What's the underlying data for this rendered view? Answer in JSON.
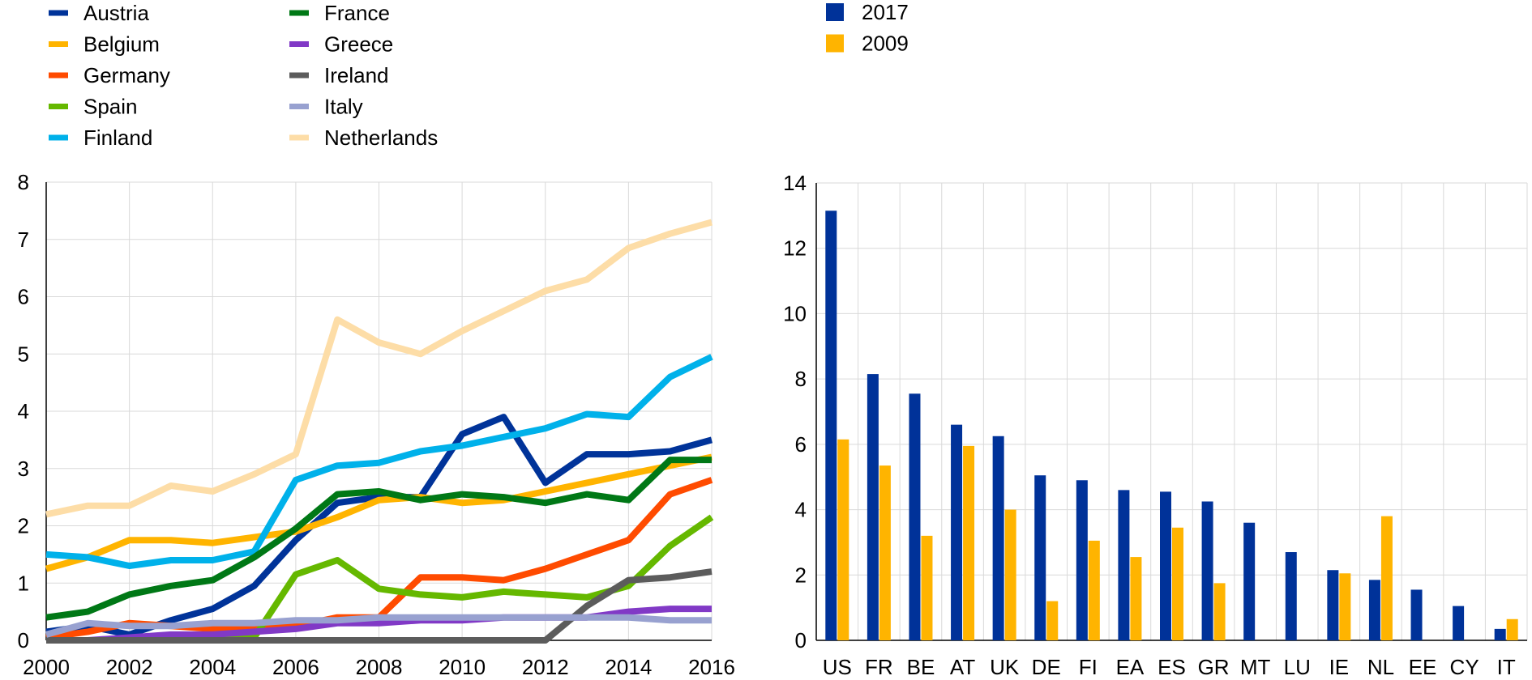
{
  "chart_data": [
    {
      "type": "line",
      "title": "",
      "xlabel": "",
      "ylabel": "",
      "x": [
        2000,
        2001,
        2002,
        2003,
        2004,
        2005,
        2006,
        2007,
        2008,
        2009,
        2010,
        2011,
        2012,
        2013,
        2014,
        2015,
        2016
      ],
      "xlim": [
        2000,
        2016
      ],
      "ylim": [
        0,
        8
      ],
      "x_ticks": [
        "2000",
        "2002",
        "2004",
        "2006",
        "2008",
        "2010",
        "2012",
        "2014",
        "2016"
      ],
      "y_ticks": [
        "0",
        "1",
        "2",
        "3",
        "4",
        "5",
        "6",
        "7",
        "8"
      ],
      "grid": "horizontal and vertical",
      "legend_position": "top-left",
      "series": [
        {
          "name": "Austria",
          "color": "#003399",
          "values": [
            0.15,
            0.25,
            0.1,
            0.35,
            0.55,
            0.95,
            1.75,
            2.4,
            2.5,
            2.5,
            3.6,
            3.9,
            2.75,
            3.25,
            3.25,
            3.3,
            3.5
          ]
        },
        {
          "name": "Belgium",
          "color": "#FFB400",
          "values": [
            1.25,
            1.45,
            1.75,
            1.75,
            1.7,
            1.8,
            1.9,
            2.15,
            2.45,
            2.5,
            2.4,
            2.45,
            2.6,
            2.75,
            2.9,
            3.05,
            3.2
          ]
        },
        {
          "name": "Germany",
          "color": "#FF4B00",
          "values": [
            0.05,
            0.15,
            0.3,
            0.25,
            0.2,
            0.2,
            0.25,
            0.4,
            0.4,
            1.1,
            1.1,
            1.05,
            1.25,
            1.5,
            1.75,
            2.55,
            2.8
          ]
        },
        {
          "name": "Spain",
          "color": "#65B800",
          "values": [
            0.0,
            0.0,
            0.0,
            0.0,
            0.0,
            0.05,
            1.15,
            1.4,
            0.9,
            0.8,
            0.75,
            0.85,
            0.8,
            0.75,
            0.95,
            1.65,
            2.15
          ]
        },
        {
          "name": "Finland",
          "color": "#00B1EA",
          "values": [
            1.5,
            1.45,
            1.3,
            1.4,
            1.4,
            1.55,
            2.8,
            3.05,
            3.1,
            3.3,
            3.4,
            3.55,
            3.7,
            3.95,
            3.9,
            4.6,
            4.95
          ]
        },
        {
          "name": "France",
          "color": "#007816",
          "values": [
            0.4,
            0.5,
            0.8,
            0.95,
            1.05,
            1.45,
            1.95,
            2.55,
            2.6,
            2.45,
            2.55,
            2.5,
            2.4,
            2.55,
            2.45,
            3.15,
            3.15
          ]
        },
        {
          "name": "Greece",
          "color": "#8139C6",
          "values": [
            0.0,
            0.0,
            0.05,
            0.1,
            0.1,
            0.15,
            0.2,
            0.3,
            0.3,
            0.35,
            0.35,
            0.4,
            0.4,
            0.4,
            0.5,
            0.55,
            0.55
          ]
        },
        {
          "name": "Ireland",
          "color": "#5C5C5C",
          "values": [
            0.0,
            0.0,
            0.0,
            0.0,
            0.0,
            0.0,
            0.0,
            0.0,
            0.0,
            0.0,
            0.0,
            0.0,
            0.0,
            0.6,
            1.05,
            1.1,
            1.2
          ]
        },
        {
          "name": "Italy",
          "color": "#98A1D0",
          "values": [
            0.1,
            0.3,
            0.25,
            0.25,
            0.3,
            0.3,
            0.35,
            0.35,
            0.4,
            0.4,
            0.4,
            0.4,
            0.4,
            0.4,
            0.4,
            0.35,
            0.35
          ]
        },
        {
          "name": "Netherlands",
          "color": "#FDDDA7",
          "values": [
            2.2,
            2.35,
            2.35,
            2.7,
            2.6,
            2.9,
            3.25,
            5.6,
            5.2,
            5.0,
            5.4,
            5.75,
            6.1,
            6.3,
            6.85,
            7.1,
            7.3
          ]
        }
      ]
    },
    {
      "type": "bar",
      "title": "",
      "xlabel": "",
      "ylabel": "",
      "categories": [
        "US",
        "FR",
        "BE",
        "AT",
        "UK",
        "DE",
        "FI",
        "EA",
        "ES",
        "GR",
        "MT",
        "LU",
        "IE",
        "NL",
        "EE",
        "CY",
        "IT"
      ],
      "ylim": [
        0,
        14
      ],
      "y_ticks": [
        "0",
        "2",
        "4",
        "6",
        "8",
        "10",
        "12",
        "14"
      ],
      "grid": "horizontal and vertical",
      "legend_position": "top",
      "series": [
        {
          "name": "2017",
          "color": "#003299",
          "values": [
            13.15,
            8.15,
            7.55,
            6.6,
            6.25,
            5.05,
            4.9,
            4.6,
            4.55,
            4.25,
            3.6,
            2.7,
            2.15,
            1.85,
            1.55,
            1.05,
            0.35
          ]
        },
        {
          "name": "2009",
          "color": "#FFB400",
          "values": [
            6.15,
            5.35,
            3.2,
            5.95,
            4.0,
            1.2,
            3.05,
            2.55,
            3.45,
            1.75,
            0.0,
            0.0,
            2.05,
            3.8,
            0.0,
            0.0,
            0.65
          ]
        }
      ]
    }
  ]
}
